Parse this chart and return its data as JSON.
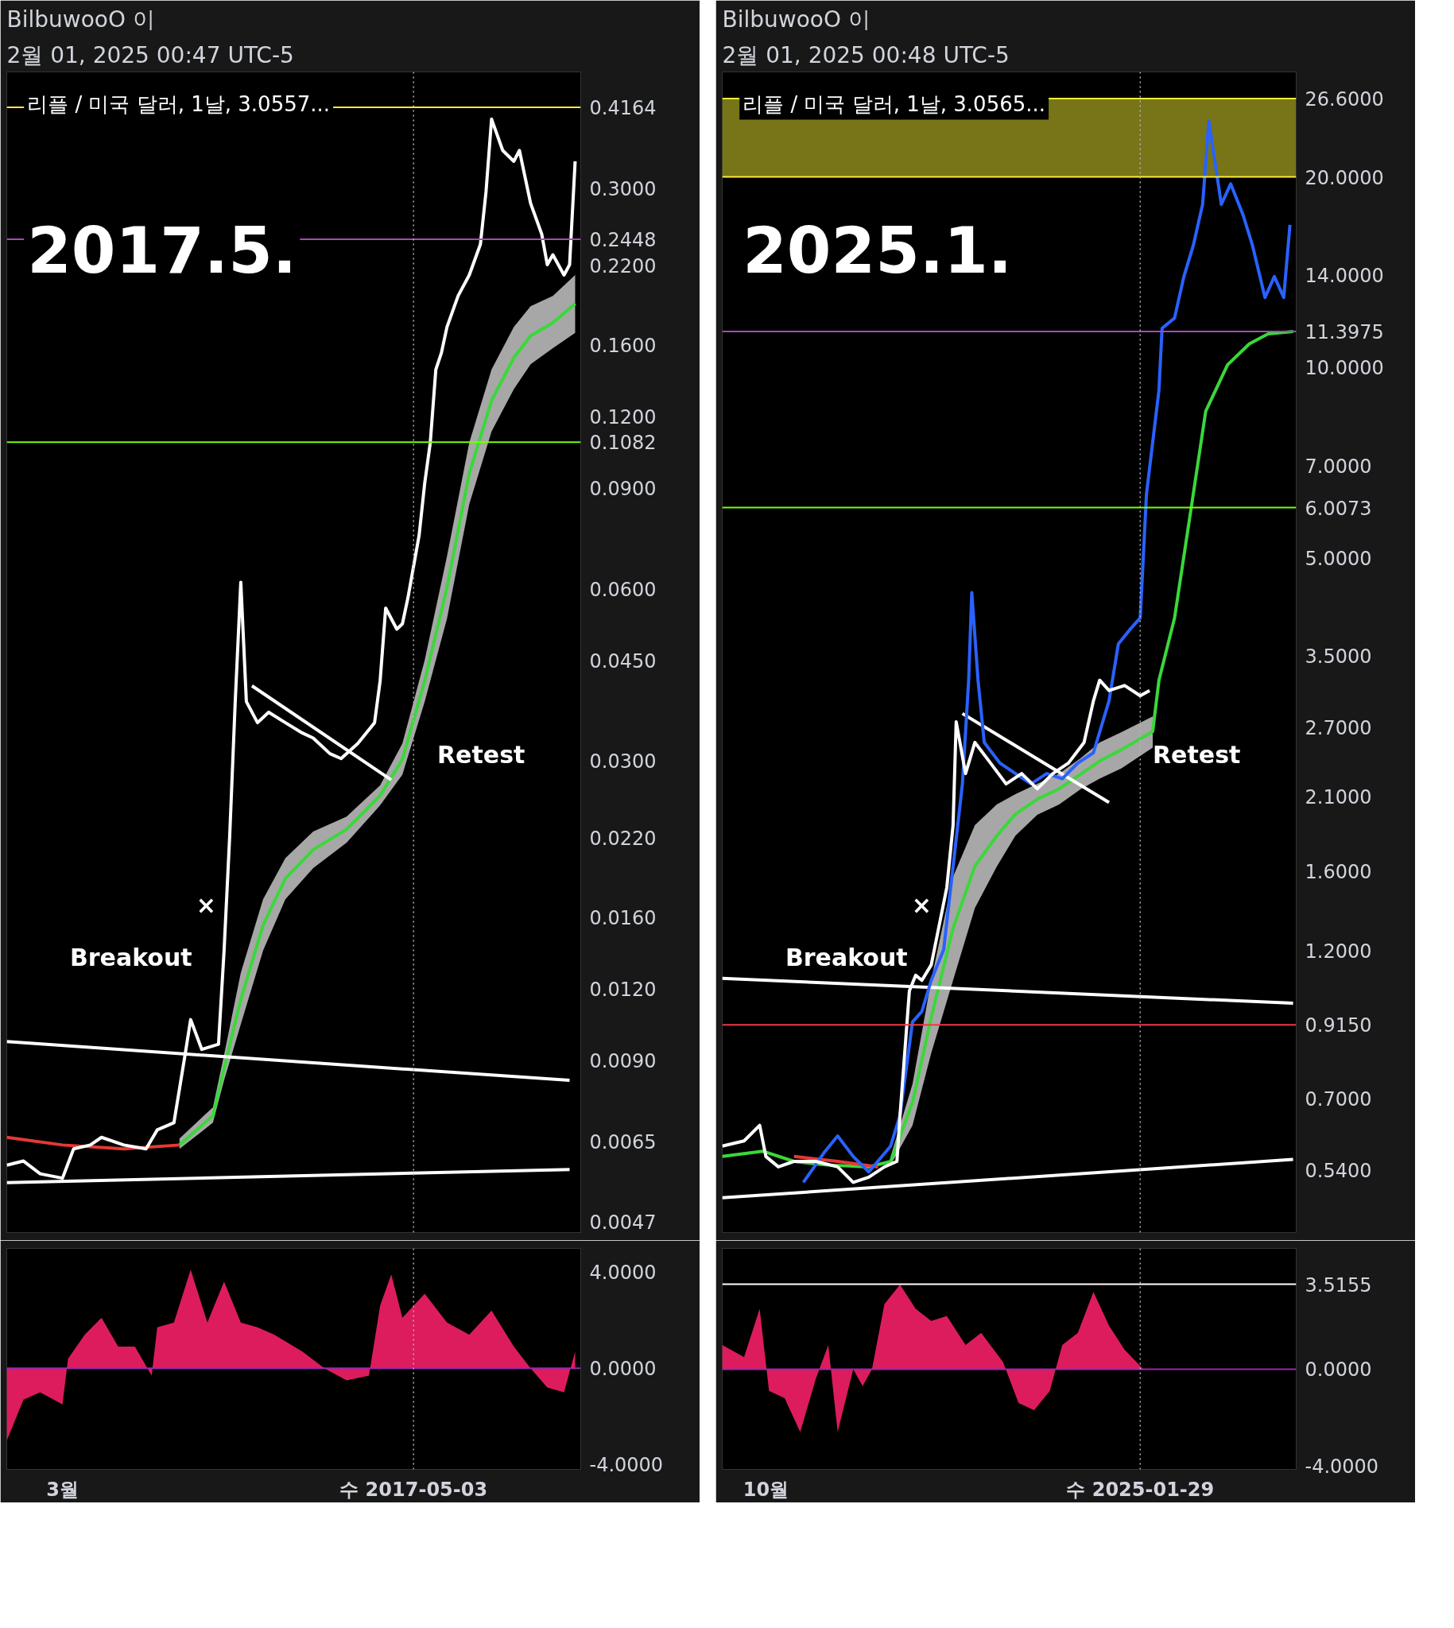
{
  "chart_data": [
    {
      "type": "line",
      "title": "BilbuwooO 이",
      "subtitle": "2월 01, 2025 00:47 UTC-5",
      "log": true,
      "tick_labels": "y",
      "xlim": [
        "2017-02-19",
        "2017-06-02"
      ],
      "ylim": [
        0.0045,
        0.48
      ],
      "yticks": [
        {
          "value": 0.3,
          "label": "0.3000"
        },
        {
          "value": 0.22,
          "label": "0.2200"
        },
        {
          "value": 0.16,
          "label": "0.1600"
        },
        {
          "value": 0.12,
          "label": "0.1200"
        },
        {
          "value": 0.09,
          "label": "0.0900"
        },
        {
          "value": 0.06,
          "label": "0.0600"
        },
        {
          "value": 0.045,
          "label": "0.0450"
        },
        {
          "value": 0.03,
          "label": "0.0300"
        },
        {
          "value": 0.022,
          "label": "0.0220"
        },
        {
          "value": 0.016,
          "label": "0.0160"
        },
        {
          "value": 0.012,
          "label": "0.0120"
        },
        {
          "value": 0.009,
          "label": "0.0090"
        },
        {
          "value": 0.0065,
          "label": "0.0065"
        },
        {
          "value": 0.0047,
          "label": "0.0047"
        }
      ],
      "annotations": [
        "리플 / 미국 달러, 1날, 3.0557...",
        "2017.5.",
        "Breakout",
        "Retest",
        "×"
      ],
      "ref_lines": [
        {
          "axis": "y",
          "value": 0.4164,
          "label": "0.4164",
          "color": "#ffeb3b"
        },
        {
          "axis": "y",
          "value": 0.2448,
          "label": "0.2448",
          "color": "#ab47bc"
        },
        {
          "axis": "y",
          "value": 0.1082,
          "label": "0.1082",
          "color": "#76ff03"
        },
        {
          "axis": "x",
          "value": "2017-05-03",
          "line_style": "dotted",
          "color": "#b2b5be"
        }
      ],
      "series": [
        {
          "color": "#3ad83a",
          "x": [
            "2017-03-22",
            "2017-03-28",
            "2017-03-30",
            "2017-04-02",
            "2017-04-06",
            "2017-04-10",
            "2017-04-15",
            "2017-04-21",
            "2017-04-27",
            "2017-05-01",
            "2017-05-05",
            "2017-05-09",
            "2017-05-13",
            "2017-05-17",
            "2017-05-21",
            "2017-05-24",
            "2017-05-28",
            "2017-06-01"
          ],
          "values": [
            0.0064,
            0.0072,
            0.0087,
            0.0115,
            0.0155,
            0.0187,
            0.021,
            0.0228,
            0.0261,
            0.0302,
            0.0414,
            0.0603,
            0.0954,
            0.128,
            0.152,
            0.166,
            0.175,
            0.189
          ],
          "lower": [
            0.0063,
            0.007,
            0.0083,
            0.0104,
            0.014,
            0.0172,
            0.0195,
            0.0216,
            0.0251,
            0.0284,
            0.0381,
            0.0532,
            0.0843,
            0.113,
            0.134,
            0.148,
            0.158,
            0.168
          ],
          "upper": [
            0.00657,
            0.00745,
            0.0092,
            0.0128,
            0.0172,
            0.0203,
            0.0226,
            0.024,
            0.0272,
            0.0322,
            0.045,
            0.0684,
            0.108,
            0.145,
            0.172,
            0.187,
            0.195,
            0.212
          ]
        },
        {
          "color": "#e53935",
          "x": [
            "2017-02-19",
            "2017-03-01",
            "2017-03-12",
            "2017-03-22"
          ],
          "values": [
            0.0066,
            0.0064,
            0.0063,
            0.0064
          ]
        },
        {
          "color": "#ffffff",
          "x": [
            "2017-02-19",
            "2017-05-31"
          ],
          "values": [
            0.0097,
            0.0083
          ]
        },
        {
          "color": "#ffffff",
          "x": [
            "2017-02-19",
            "2017-05-31"
          ],
          "values": [
            0.0055,
            0.0058
          ]
        },
        {
          "color": "#ffffff",
          "x": [
            "2017-04-04",
            "2017-04-29"
          ],
          "values": [
            0.0406,
            0.0278
          ]
        },
        {
          "color": "#ffffff",
          "x": [
            "2017-02-19",
            "2017-02-22",
            "2017-02-25",
            "2017-03-01",
            "2017-03-03",
            "2017-03-06",
            "2017-03-08",
            "2017-03-12",
            "2017-03-16",
            "2017-03-18",
            "2017-03-21",
            "2017-03-23",
            "2017-03-24",
            "2017-03-26",
            "2017-03-29",
            "2017-03-30",
            "2017-03-31",
            "2017-04-01",
            "2017-04-02",
            "2017-04-03",
            "2017-04-05",
            "2017-04-07",
            "2017-04-10",
            "2017-04-13",
            "2017-04-15",
            "2017-04-18",
            "2017-04-20",
            "2017-04-23",
            "2017-04-26",
            "2017-04-27",
            "2017-04-28",
            "2017-04-30",
            "2017-05-01",
            "2017-05-02",
            "2017-05-04",
            "2017-05-05",
            "2017-05-06",
            "2017-05-07",
            "2017-05-08",
            "2017-05-09",
            "2017-05-11",
            "2017-05-13",
            "2017-05-15",
            "2017-05-16",
            "2017-05-17",
            "2017-05-19",
            "2017-05-21",
            "2017-05-22",
            "2017-05-24",
            "2017-05-26",
            "2017-05-27",
            "2017-05-28",
            "2017-05-30",
            "2017-05-31",
            "2017-06-01"
          ],
          "values": [
            0.0059,
            0.006,
            0.0057,
            0.0056,
            0.0063,
            0.0064,
            0.0066,
            0.0064,
            0.0063,
            0.0068,
            0.007,
            0.0092,
            0.0106,
            0.0094,
            0.0096,
            0.014,
            0.0221,
            0.0381,
            0.0616,
            0.0381,
            0.035,
            0.0365,
            0.035,
            0.0336,
            0.0329,
            0.0309,
            0.0303,
            0.0322,
            0.035,
            0.0414,
            0.0555,
            0.051,
            0.0521,
            0.0579,
            0.0744,
            0.0917,
            0.108,
            0.145,
            0.155,
            0.172,
            0.195,
            0.212,
            0.24,
            0.296,
            0.397,
            0.35,
            0.335,
            0.35,
            0.283,
            0.25,
            0.221,
            0.23,
            0.212,
            0.221,
            0.335
          ]
        }
      ]
    },
    {
      "type": "area",
      "xlim": [
        "2017-02-19",
        "2017-06-02"
      ],
      "ylim": [
        -4.2,
        4.98
      ],
      "xticks": [
        {
          "value": "2017-03-01",
          "label": "3월"
        },
        {
          "value": "2017-05-03",
          "label": "수 2017-05-03"
        }
      ],
      "yticks": [
        {
          "value": 4,
          "label": "4.0000"
        },
        {
          "value": 0,
          "label": "0.0000"
        },
        {
          "value": -4,
          "label": "-4.0000"
        }
      ],
      "ref_lines": [
        {
          "axis": "y",
          "value": 0,
          "color": "#9c27b0"
        },
        {
          "axis": "x",
          "value": "2017-05-03",
          "line_style": "dotted",
          "color": "#b2b5be"
        }
      ],
      "series": [
        {
          "color": "#e91e63",
          "x": [
            "2017-02-19",
            "2017-02-22",
            "2017-02-25",
            "2017-03-01",
            "2017-03-02",
            "2017-03-05",
            "2017-03-08",
            "2017-03-11",
            "2017-03-14",
            "2017-03-17",
            "2017-03-18",
            "2017-03-21",
            "2017-03-24",
            "2017-03-27",
            "2017-03-30",
            "2017-04-02",
            "2017-04-05",
            "2017-04-08",
            "2017-04-13",
            "2017-04-17",
            "2017-04-21",
            "2017-04-25",
            "2017-04-27",
            "2017-04-29",
            "2017-05-01",
            "2017-05-05",
            "2017-05-09",
            "2017-05-13",
            "2017-05-17",
            "2017-05-21",
            "2017-05-24",
            "2017-05-27",
            "2017-05-30",
            "2017-06-01"
          ],
          "values": [
            -3.0,
            -1.3,
            -1.0,
            -1.5,
            0.4,
            1.4,
            2.1,
            0.9,
            0.9,
            -0.3,
            1.7,
            1.9,
            4.1,
            1.9,
            3.6,
            1.9,
            1.7,
            1.4,
            0.7,
            0.0,
            -0.5,
            -0.3,
            2.6,
            3.9,
            2.1,
            3.1,
            1.9,
            1.4,
            2.4,
            0.9,
            0.0,
            -0.8,
            -1.0,
            0.7
          ]
        }
      ]
    },
    {
      "type": "line",
      "title": "BilbuwooO 이",
      "subtitle": "2월 01, 2025 00:48 UTC-5",
      "log": true,
      "tick_labels": "y",
      "xlim": [
        "2024-09-17",
        "2025-03-20"
      ],
      "ylim": [
        0.43,
        29.3
      ],
      "yticks": [
        {
          "value": 14,
          "label": "14.0000"
        },
        {
          "value": 10,
          "label": "10.0000"
        },
        {
          "value": 7,
          "label": "7.0000"
        },
        {
          "value": 5,
          "label": "5.0000"
        },
        {
          "value": 3.5,
          "label": "3.5000"
        },
        {
          "value": 2.7,
          "label": "2.7000"
        },
        {
          "value": 2.1,
          "label": "2.1000"
        },
        {
          "value": 1.6,
          "label": "1.6000"
        },
        {
          "value": 1.2,
          "label": "1.2000"
        },
        {
          "value": 0.7,
          "label": "0.7000"
        },
        {
          "value": 0.54,
          "label": "0.5400"
        }
      ],
      "annotations": [
        "리플 / 미국 달러, 1날, 3.0565...",
        "2025.1.",
        "Breakout",
        "Retest",
        "×"
      ],
      "bands": [
        {
          "axis": "y",
          "from": 20.0,
          "to": 26.6,
          "color": "#8c8a1c"
        }
      ],
      "ref_lines": [
        {
          "axis": "y",
          "value": 26.6,
          "label": "26.6000",
          "color": "#ffeb3b"
        },
        {
          "axis": "y",
          "value": 20.0,
          "label": "20.0000",
          "color": "#ffeb3b"
        },
        {
          "axis": "y",
          "value": 11.3975,
          "label": "11.3975",
          "color": "#ab47bc"
        },
        {
          "axis": "y",
          "value": 6.0073,
          "label": "6.0073",
          "color": "#76ff03"
        },
        {
          "axis": "y",
          "value": 0.915,
          "label": "0.9150",
          "color": "#f23645"
        },
        {
          "axis": "x",
          "value": "2025-01-29",
          "line_style": "dotted",
          "color": "#b2b5be"
        }
      ],
      "series": [
        {
          "color": "#3ad83a",
          "x": [
            "2024-09-17",
            "2024-09-30",
            "2024-10-10",
            "2024-10-20",
            "2024-11-03",
            "2024-11-10",
            "2024-11-17",
            "2024-11-23",
            "2024-11-30",
            "2024-12-07",
            "2024-12-14",
            "2024-12-20",
            "2024-12-27",
            "2025-01-03",
            "2025-01-10",
            "2025-01-16",
            "2025-01-23",
            "2025-02-02",
            "2025-02-04",
            "2025-02-09",
            "2025-02-14",
            "2025-02-19",
            "2025-02-26",
            "2025-03-05",
            "2025-03-11",
            "2025-03-19"
          ],
          "values": [
            0.567,
            0.578,
            0.557,
            0.55,
            0.546,
            0.557,
            0.69,
            0.94,
            1.3,
            1.63,
            1.82,
            1.97,
            2.08,
            2.16,
            2.28,
            2.39,
            2.49,
            2.66,
            3.206,
            4.02,
            5.85,
            8.53,
            10.1,
            10.9,
            11.3,
            11.4
          ],
          "lower": [
            null,
            null,
            null,
            null,
            null,
            0.55,
            0.635,
            0.826,
            1.076,
            1.4,
            1.627,
            1.822,
            1.965,
            2.04,
            2.159,
            2.241,
            2.327,
            2.509,
            null,
            null,
            null,
            null,
            null,
            null,
            null,
            null
          ],
          "upper": [
            null,
            null,
            null,
            null,
            null,
            0.567,
            0.738,
            1.076,
            1.568,
            1.892,
            2.04,
            2.118,
            2.199,
            2.283,
            2.416,
            2.557,
            2.655,
            2.81,
            null,
            null,
            null,
            null,
            null,
            null,
            null,
            null
          ]
        },
        {
          "color": "#e53935",
          "x": [
            "2024-10-10",
            "2024-10-24",
            "2024-11-06"
          ],
          "values": [
            0.567,
            0.557,
            0.546
          ]
        },
        {
          "color": "#ffffff",
          "x": [
            "2024-09-17",
            "2025-03-19"
          ],
          "values": [
            1.084,
            0.99
          ]
        },
        {
          "color": "#ffffff",
          "x": [
            "2024-09-17",
            "2025-03-19"
          ],
          "values": [
            0.488,
            0.561
          ]
        },
        {
          "color": "#ffffff",
          "x": [
            "2024-12-03",
            "2025-01-19"
          ],
          "values": [
            2.84,
            2.055
          ]
        },
        {
          "color": "#2962ff",
          "x": [
            "2024-10-13",
            "2024-10-20",
            "2024-10-24",
            "2024-10-29",
            "2024-11-03",
            "2024-11-10",
            "2024-11-13",
            "2024-11-17",
            "2024-11-20",
            "2024-11-23",
            "2024-11-27",
            "2024-11-30",
            "2024-12-03",
            "2024-12-05",
            "2024-12-06",
            "2024-12-08",
            "2024-12-10",
            "2024-12-15",
            "2024-12-20",
            "2024-12-25",
            "2024-12-30",
            "2025-01-04",
            "2025-01-09",
            "2025-01-14",
            "2025-01-19",
            "2025-01-22",
            "2025-01-26",
            "2025-01-29",
            "2025-01-31",
            "2025-02-02",
            "2025-02-04",
            "2025-02-05",
            "2025-02-09",
            "2025-02-12",
            "2025-02-15",
            "2025-02-18",
            "2025-02-20",
            "2025-02-24",
            "2025-02-27",
            "2025-03-03",
            "2025-03-06",
            "2025-03-10",
            "2025-03-13",
            "2025-03-16",
            "2025-03-18"
          ],
          "values": [
            0.516,
            0.578,
            0.611,
            0.567,
            0.536,
            0.589,
            0.659,
            0.925,
            0.961,
            1.076,
            1.204,
            1.627,
            2.199,
            3.206,
            4.41,
            3.206,
            2.557,
            2.372,
            2.283,
            2.199,
            2.283,
            2.241,
            2.372,
            2.462,
            2.974,
            3.66,
            3.87,
            4.02,
            6.31,
            7.62,
            9.2,
            11.53,
            11.97,
            13.92,
            15.58,
            18.1,
            24.5,
            18.1,
            19.5,
            17.4,
            15.58,
            12.9,
            13.92,
            12.9,
            16.8
          ]
        },
        {
          "color": "#ffffff",
          "x": [
            "2024-09-17",
            "2024-09-24",
            "2024-09-29",
            "2024-10-01",
            "2024-10-05",
            "2024-10-10",
            "2024-10-17",
            "2024-10-24",
            "2024-10-29",
            "2024-11-03",
            "2024-11-08",
            "2024-11-12",
            "2024-11-13",
            "2024-11-16",
            "2024-11-18",
            "2024-11-20",
            "2024-11-23",
            "2024-11-28",
            "2024-11-30",
            "2024-12-01",
            "2024-12-04",
            "2024-12-07",
            "2024-12-12",
            "2024-12-17",
            "2024-12-22",
            "2024-12-27",
            "2025-01-01",
            "2025-01-06",
            "2025-01-11",
            "2025-01-14",
            "2025-01-16",
            "2025-01-19",
            "2025-01-24",
            "2025-01-29",
            "2025-02-01"
          ],
          "values": [
            0.589,
            0.6,
            0.635,
            0.567,
            0.546,
            0.557,
            0.557,
            0.546,
            0.516,
            0.526,
            0.546,
            0.557,
            0.659,
            1.036,
            1.096,
            1.076,
            1.138,
            1.509,
            1.892,
            2.756,
            2.283,
            2.557,
            2.372,
            2.199,
            2.283,
            2.159,
            2.283,
            2.372,
            2.557,
            2.974,
            3.206,
            3.088,
            3.145,
            3.03,
            3.088
          ]
        }
      ]
    },
    {
      "type": "area",
      "xlim": [
        "2024-09-17",
        "2025-03-20"
      ],
      "ylim": [
        -4.15,
        5.0
      ],
      "xticks": [
        {
          "value": "2024-10-01",
          "label": "10월"
        },
        {
          "value": "2025-01-29",
          "label": "수 2025-01-29"
        }
      ],
      "yticks": [
        {
          "value": 0,
          "label": "0.0000"
        },
        {
          "value": -4,
          "label": "-4.0000"
        }
      ],
      "ref_lines": [
        {
          "axis": "y",
          "value": 0,
          "color": "#9c27b0"
        },
        {
          "axis": "y",
          "value": 3.5155,
          "label": "3.5155",
          "color": "#ffffff"
        },
        {
          "axis": "x",
          "value": "2025-01-29",
          "line_style": "dotted",
          "color": "#b2b5be"
        }
      ],
      "series": [
        {
          "color": "#e91e63",
          "x": [
            "2024-09-17",
            "2024-09-24",
            "2024-09-29",
            "2024-10-02",
            "2024-10-07",
            "2024-10-12",
            "2024-10-17",
            "2024-10-21",
            "2024-10-24",
            "2024-10-29",
            "2024-11-01",
            "2024-11-04",
            "2024-11-08",
            "2024-11-13",
            "2024-11-18",
            "2024-11-23",
            "2024-11-28",
            "2024-12-04",
            "2024-12-09",
            "2024-12-16",
            "2024-12-21",
            "2024-12-26",
            "2024-12-31",
            "2025-01-04",
            "2025-01-09",
            "2025-01-14",
            "2025-01-19",
            "2025-01-24",
            "2025-01-30"
          ],
          "values": [
            1.0,
            0.5,
            2.5,
            -0.9,
            -1.2,
            -2.6,
            -0.4,
            1.0,
            -2.6,
            0.0,
            -0.7,
            0.0,
            2.7,
            3.5,
            2.5,
            2.0,
            2.2,
            1.0,
            1.5,
            0.3,
            -1.4,
            -1.7,
            -0.9,
            1.0,
            1.5,
            3.2,
            1.8,
            0.8,
            0.0
          ]
        }
      ]
    }
  ]
}
